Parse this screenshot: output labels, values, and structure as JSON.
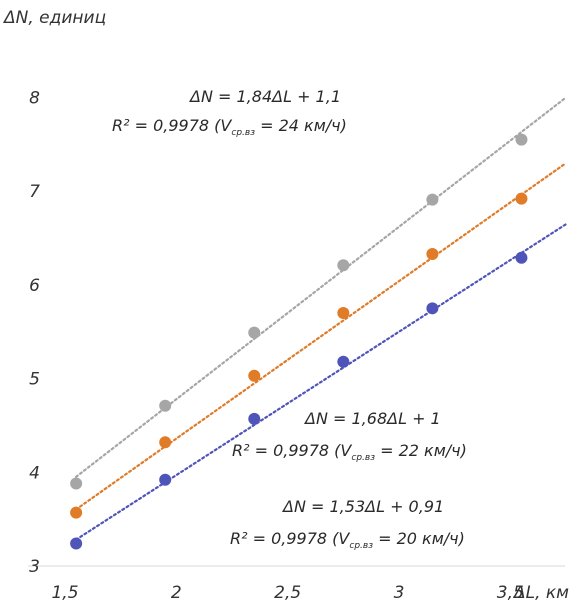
{
  "chart_data": {
    "type": "scatter",
    "y_axis_label": "ΔN, единиц",
    "x_axis_label": "ΔL, км",
    "x_ticks": [
      "1,5",
      "2",
      "2,5",
      "3",
      "3,5"
    ],
    "y_ticks": [
      "3",
      "4",
      "5",
      "6",
      "7",
      "8"
    ],
    "xlim": [
      1.5,
      3.75
    ],
    "ylim": [
      3.0,
      8.4
    ],
    "grid": false,
    "series": [
      {
        "color": "#a6a6a6",
        "x": [
          1.55,
          1.95,
          2.35,
          2.75,
          3.15,
          3.55
        ],
        "y": [
          3.88,
          4.71,
          5.49,
          6.21,
          6.91,
          7.55
        ],
        "trend": {
          "slope": 1.84,
          "intercept": 1.1,
          "x_end": 3.75
        },
        "annotation": {
          "equation": "ΔN = 1,84ΔL + 1,1",
          "r2_prefix": "R² = 0,9978 (V",
          "r2_sub": "ср.вз",
          "r2_suffix": " = 24 км/ч)"
        }
      },
      {
        "color": "#e07b28",
        "x": [
          1.55,
          1.95,
          2.35,
          2.75,
          3.15,
          3.55
        ],
        "y": [
          3.57,
          4.32,
          5.03,
          5.7,
          6.33,
          6.92
        ],
        "trend": {
          "slope": 1.68,
          "intercept": 1.0,
          "x_end": 3.75
        },
        "annotation": {
          "equation": "ΔN = 1,68ΔL + 1",
          "r2_prefix": "R² = 0,9978 (V",
          "r2_sub": "ср.вз",
          "r2_suffix": " = 22 км/ч)"
        }
      },
      {
        "color": "#4f55b8",
        "x": [
          1.55,
          1.95,
          2.35,
          2.75,
          3.15,
          3.55
        ],
        "y": [
          3.24,
          3.92,
          4.57,
          5.18,
          5.75,
          6.29
        ],
        "trend": {
          "slope": 1.53,
          "intercept": 0.91,
          "x_end": 3.75
        },
        "annotation": {
          "equation": "ΔN = 1,53ΔL + 0,91",
          "r2_prefix": "R² = 0,9978 (V",
          "r2_sub": "ср.вз",
          "r2_suffix": " = 20 км/ч)"
        }
      }
    ]
  }
}
